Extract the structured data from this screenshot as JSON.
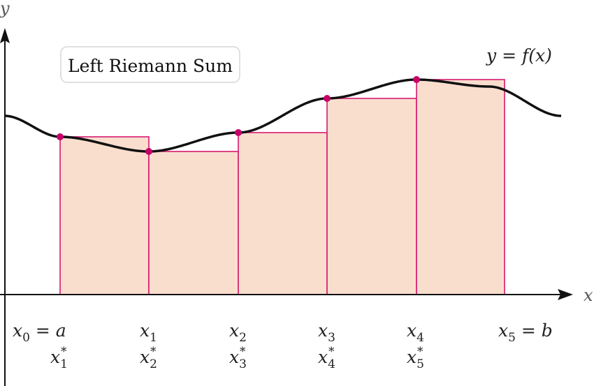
{
  "title_badge": "Left Riemann Sum",
  "curve_label": "y = f(x)",
  "axes": {
    "x_label": "x",
    "y_label": "y"
  },
  "colors": {
    "rect_fill": "#f9dece",
    "rect_stroke": "#d6186f",
    "point": "#c8006a",
    "curve": "#111111"
  },
  "partition_labels": [
    {
      "main": "x",
      "sub": "0",
      "suffix": " = a"
    },
    {
      "main": "x",
      "sub": "1",
      "suffix": ""
    },
    {
      "main": "x",
      "sub": "2",
      "suffix": ""
    },
    {
      "main": "x",
      "sub": "3",
      "suffix": ""
    },
    {
      "main": "x",
      "sub": "4",
      "suffix": ""
    },
    {
      "main": "x",
      "sub": "5",
      "suffix": " = b"
    }
  ],
  "sample_labels": [
    {
      "main": "x",
      "sub": "1",
      "sup": "*"
    },
    {
      "main": "x",
      "sub": "2",
      "sup": "*"
    },
    {
      "main": "x",
      "sub": "3",
      "sup": "*"
    },
    {
      "main": "x",
      "sub": "4",
      "sup": "*"
    },
    {
      "main": "x",
      "sub": "5",
      "sup": "*"
    }
  ]
}
